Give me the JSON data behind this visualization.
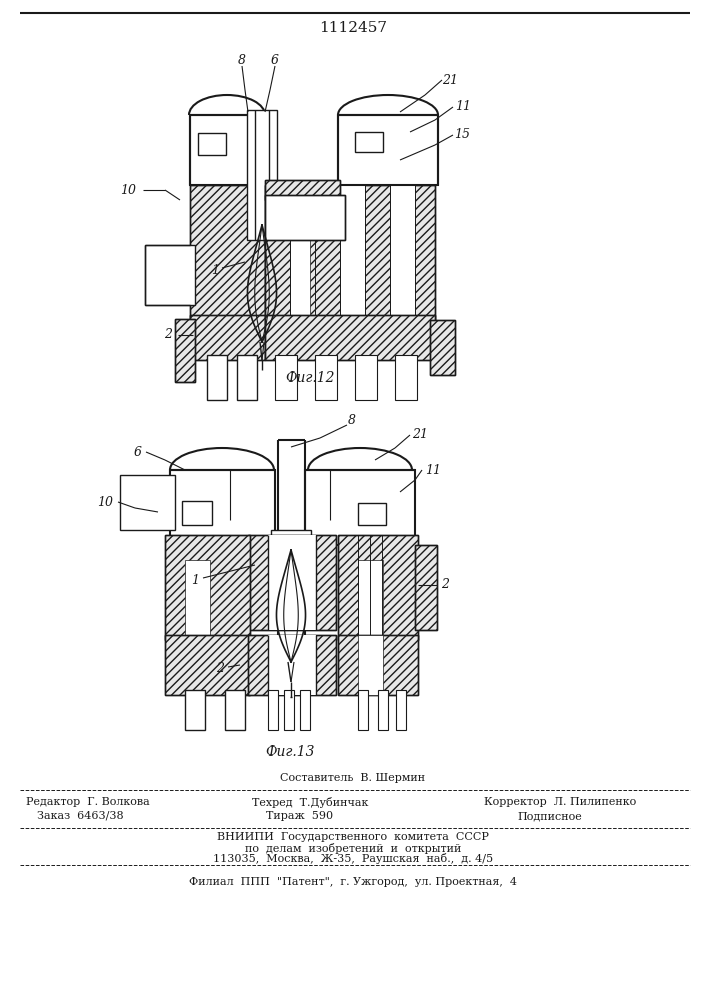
{
  "patent_number": "1112457",
  "fig12_label": "Фиг.12",
  "fig13_label": "Фиг.13",
  "footer": {
    "sestavitel": "Составитель  В. Шермин",
    "redaktor": "Редактор  Г. Волкова",
    "tehred": "Техред  Т.Дубинчак",
    "korrektor": "Корректор  Л. Пилипенко",
    "zakaz": "Заказ  6463/38",
    "tirazh": "Тираж  590",
    "podpisnoe": "Подписное",
    "vniipи": "ВНИИПИ  Государственного  комитета  СССР",
    "po_delam": "по  делам  изобретений  и  открытий",
    "address": "113035,  Москва,  Ж-35,  Раушская  наб.,  д. 4/5",
    "filial": "Филиал  ППП  \"Патент\",  г. Ужгород,  ул. Проектная,  4"
  },
  "bg_color": "#ffffff",
  "dc": "#1a1a1a"
}
